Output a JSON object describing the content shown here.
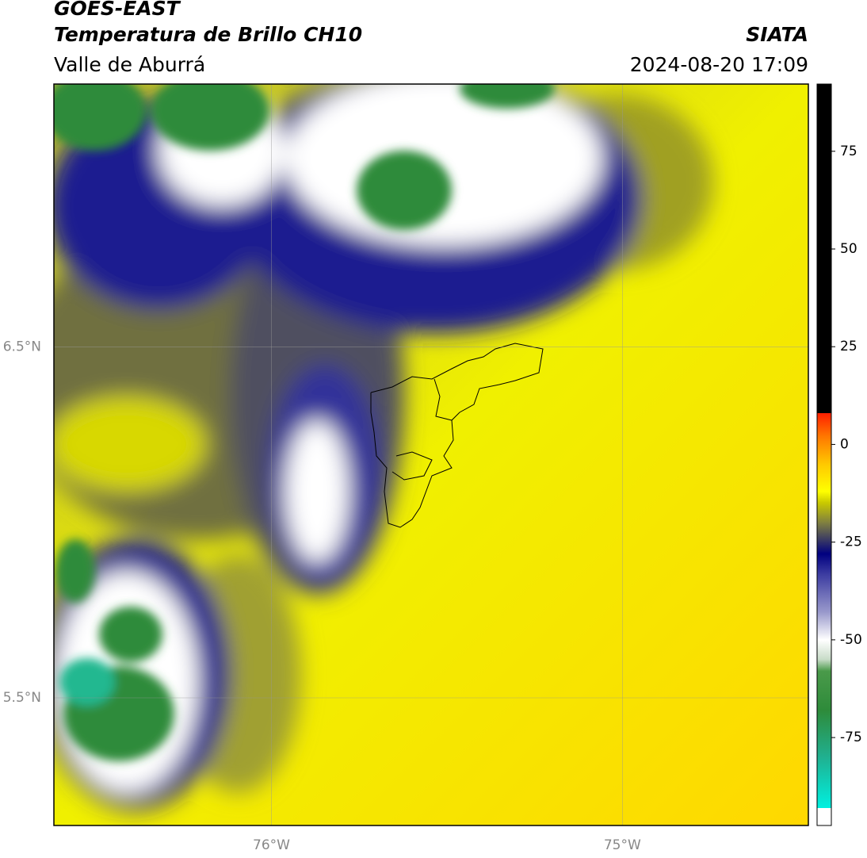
{
  "header": {
    "title": "GOES-EAST",
    "subtitle": "Temperatura de Brillo CH10",
    "source": "SIATA",
    "region": "Valle de Aburrá",
    "datetime": "2024-08-20 17:09"
  },
  "map": {
    "xlim": [
      -76.62,
      -74.47
    ],
    "ylim": [
      5.136,
      7.25
    ],
    "xticks": [
      {
        "value": -76,
        "label": "76°W"
      },
      {
        "value": -75,
        "label": "75°W"
      }
    ],
    "yticks": [
      {
        "value": 6.5,
        "label": "6.5°N"
      },
      {
        "value": 5.5,
        "label": "5.5°N"
      }
    ],
    "grid": true
  },
  "colorbar": {
    "lim": [
      -97.5,
      92.2
    ],
    "ticks": [
      75,
      50,
      25,
      0,
      -25,
      -50,
      -75
    ],
    "stops": [
      {
        "value": -97.5,
        "color": "#ffffff"
      },
      {
        "value": -93,
        "color": "#ffffff"
      },
      {
        "value": -93,
        "color": "#00f0e0"
      },
      {
        "value": -80,
        "color": "#20b090"
      },
      {
        "value": -68,
        "color": "#2e8b3a"
      },
      {
        "value": -58,
        "color": "#4a9a4a"
      },
      {
        "value": -55,
        "color": "#c8dcc8"
      },
      {
        "value": -50,
        "color": "#ffffff"
      },
      {
        "value": -43,
        "color": "#9a9acc"
      },
      {
        "value": -33,
        "color": "#3a3aa0"
      },
      {
        "value": -28,
        "color": "#000080"
      },
      {
        "value": -24,
        "color": "#404060"
      },
      {
        "value": -20,
        "color": "#808040"
      },
      {
        "value": -15,
        "color": "#c8c800"
      },
      {
        "value": -12,
        "color": "#ffff00"
      },
      {
        "value": -5,
        "color": "#ffc800"
      },
      {
        "value": 2,
        "color": "#ff7800"
      },
      {
        "value": 8,
        "color": "#ff2000"
      },
      {
        "value": 8,
        "color": "#000000"
      },
      {
        "value": 92.2,
        "color": "#000000"
      }
    ]
  }
}
